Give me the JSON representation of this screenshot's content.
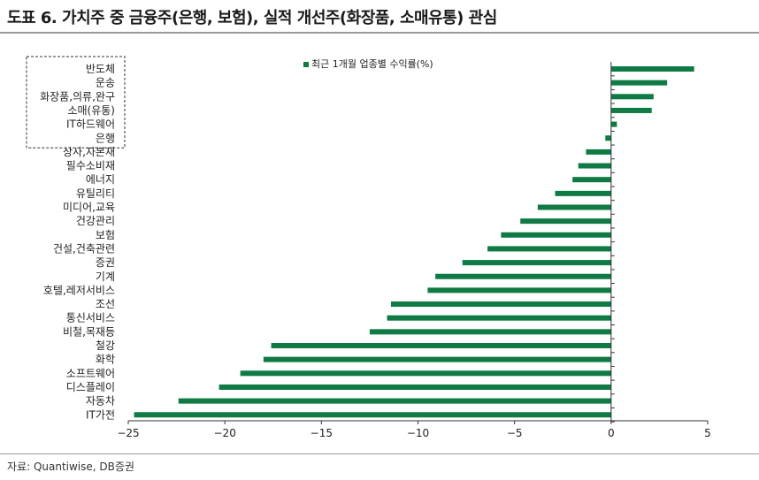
{
  "header": {
    "title": "도표 6. 가치주 중 금융주(은행, 보험), 실적 개선주(화장품, 소매유통) 관심"
  },
  "footer": {
    "source": "자료: Quantiwise, DB증권"
  },
  "colors": {
    "bar": "#0f7a44",
    "axis": "#333333"
  },
  "chart_data": {
    "type": "bar",
    "orientation": "horizontal",
    "title": "",
    "xlabel": "",
    "ylabel": "",
    "xlim": [
      -25,
      5
    ],
    "xticks": [
      -25,
      -20,
      -15,
      -10,
      -5,
      0,
      5
    ],
    "grid": false,
    "legend": {
      "position": "top",
      "entries": [
        "최근 1개월 업종별 수익률(%)"
      ]
    },
    "highlight_box_categories": [
      "반도체",
      "운송",
      "화장품,의류,완구",
      "소매(유통)",
      "IT하드웨어",
      "은행"
    ],
    "categories": [
      "반도체",
      "운송",
      "화장품,의류,완구",
      "소매(유통)",
      "IT하드웨어",
      "은행",
      "상사,자본재",
      "필수소비재",
      "에너지",
      "유틸리티",
      "미디어,교육",
      "건강관리",
      "보험",
      "건설,건축관련",
      "증권",
      "기계",
      "호텔,레저서비스",
      "조선",
      "통신서비스",
      "비철,목재등",
      "철강",
      "화학",
      "소프트웨어",
      "디스플레이",
      "자동차",
      "IT가전"
    ],
    "series": [
      {
        "name": "최근 1개월 업종별 수익률(%)",
        "values": [
          4.3,
          2.9,
          2.2,
          2.1,
          0.3,
          -0.3,
          -1.3,
          -1.7,
          -2.0,
          -2.9,
          -3.8,
          -4.7,
          -5.7,
          -6.4,
          -7.7,
          -9.1,
          -9.5,
          -11.4,
          -11.6,
          -12.5,
          -17.6,
          -18.0,
          -19.2,
          -20.3,
          -22.4,
          -24.7
        ]
      }
    ]
  }
}
